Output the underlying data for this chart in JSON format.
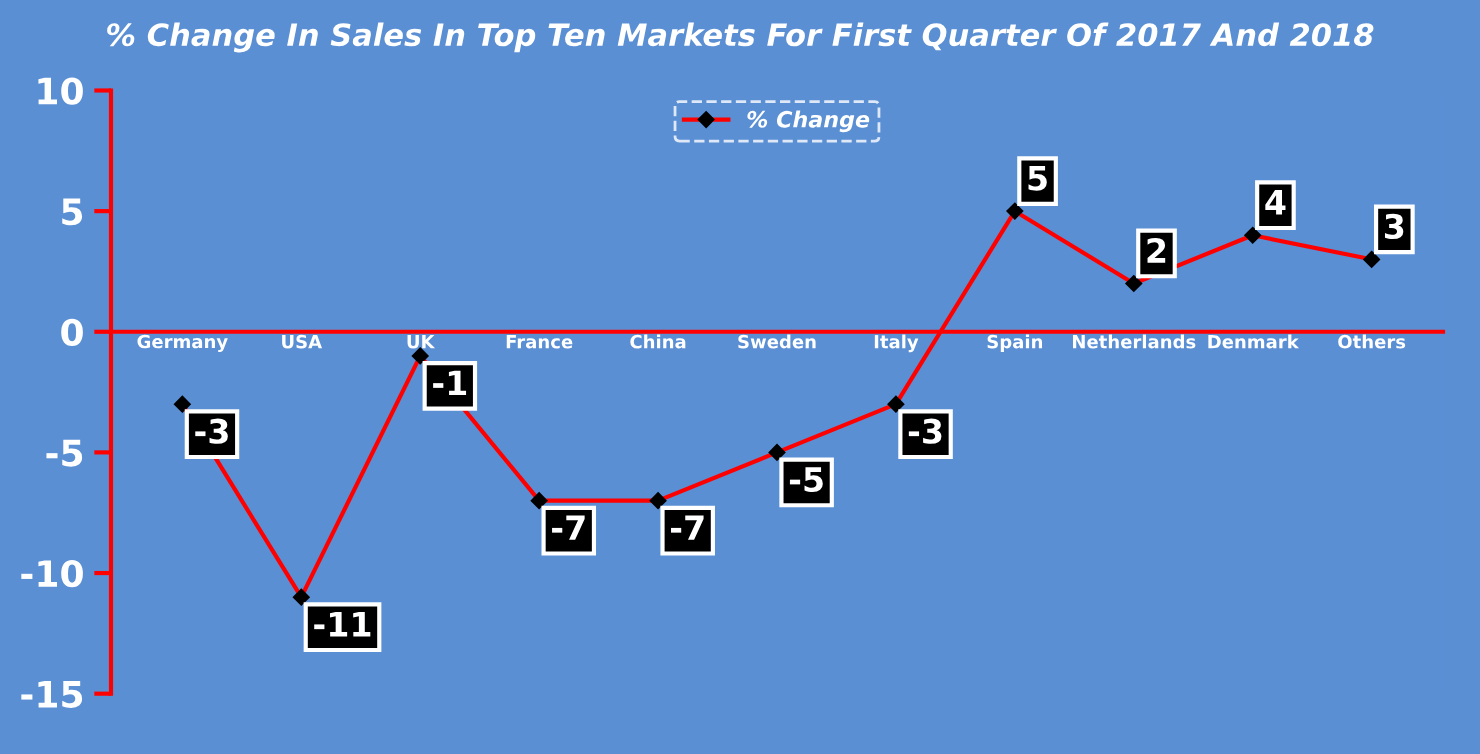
{
  "chart_data": {
    "type": "line",
    "title": "% Change In Sales In Top Ten Markets For First Quarter Of 2017 And 2018",
    "categories": [
      "Germany",
      "USA",
      "UK",
      "France",
      "China",
      "Sweden",
      "Italy",
      "Spain",
      "Netherlands",
      "Denmark",
      "Others"
    ],
    "series": [
      {
        "name": "% Change",
        "color": "#ff0000",
        "values": [
          -3,
          -11,
          -1,
          -7,
          -7,
          -5,
          -3,
          5,
          2,
          4,
          3
        ]
      }
    ],
    "ylim": [
      -15,
      10
    ],
    "yticks": [
      -15,
      -10,
      -5,
      0,
      5,
      10
    ],
    "data_labels": true,
    "grid": false,
    "legend": "top",
    "marker": "diamond",
    "line_style": "solid"
  }
}
